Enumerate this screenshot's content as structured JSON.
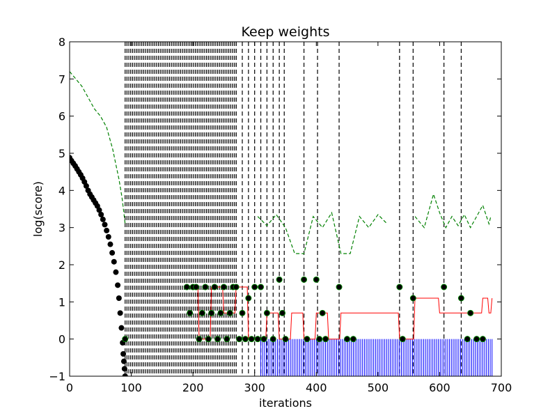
{
  "chart_data": {
    "type": "line",
    "title": "Keep weights",
    "xlabel": "iterations",
    "ylabel": "log(score)",
    "xlim": [
      0,
      700
    ],
    "ylim": [
      -1,
      8
    ],
    "xticks": [
      0,
      100,
      200,
      300,
      400,
      500,
      600,
      700
    ],
    "yticks": [
      -1,
      0,
      1,
      2,
      3,
      4,
      5,
      6,
      7,
      8
    ],
    "xtick_labels": [
      "0",
      "100",
      "200",
      "300",
      "400",
      "500",
      "600",
      "700"
    ],
    "ytick_labels": [
      "−1",
      "0",
      "1",
      "2",
      "3",
      "4",
      "5",
      "6",
      "7",
      "8"
    ],
    "grid": false,
    "legend": "none",
    "colors": {
      "decay_dots": "#000000",
      "green_dashed": "#008000",
      "red_line": "#ff0000",
      "blue_line": "#0000ff",
      "vlines": "#000000"
    },
    "series": [
      {
        "style": "black-dots",
        "x": [
          0,
          3,
          6,
          9,
          12,
          15,
          18,
          21,
          24,
          27,
          30,
          33,
          36,
          39,
          42,
          45,
          48,
          51,
          54,
          57,
          60,
          63,
          66,
          69,
          72,
          75,
          78,
          80,
          82,
          84,
          86,
          87,
          88,
          89,
          90
        ],
        "y": [
          4.88,
          4.8,
          4.73,
          4.66,
          4.58,
          4.5,
          4.42,
          4.33,
          4.23,
          4.12,
          4.0,
          3.9,
          3.82,
          3.74,
          3.66,
          3.58,
          3.47,
          3.35,
          3.22,
          3.08,
          2.92,
          2.75,
          2.55,
          2.32,
          2.08,
          1.8,
          1.45,
          1.1,
          0.7,
          0.3,
          -0.1,
          -0.4,
          -0.6,
          -0.8,
          -1.0
        ]
      },
      {
        "style": "green-dashed",
        "x": [
          0,
          10,
          20,
          30,
          40,
          50,
          60,
          70,
          75,
          80,
          85,
          88,
          90
        ],
        "y": [
          7.2,
          7.0,
          6.8,
          6.5,
          6.2,
          6.0,
          5.7,
          5.1,
          4.7,
          4.3,
          3.8,
          3.4,
          3.1
        ]
      },
      {
        "style": "green-dashed",
        "x": [
          305,
          320,
          335,
          350,
          365,
          380,
          395,
          410,
          425,
          440,
          455,
          470,
          485,
          500,
          515
        ],
        "y": [
          3.3,
          3.05,
          3.35,
          3.0,
          2.3,
          2.3,
          3.3,
          3.0,
          3.4,
          2.3,
          2.3,
          3.3,
          3.0,
          3.35,
          3.1
        ]
      },
      {
        "style": "green-dashed",
        "x": [
          560,
          575,
          590,
          600,
          610,
          620,
          630,
          640,
          650,
          660,
          670,
          680,
          683
        ],
        "y": [
          3.3,
          3.0,
          3.9,
          3.4,
          3.0,
          3.3,
          3.05,
          3.35,
          3.0,
          3.3,
          3.6,
          3.1,
          3.3
        ]
      },
      {
        "style": "red-line",
        "x": [
          190,
          210,
          230,
          250,
          270,
          290,
          300,
          320,
          340,
          360,
          380,
          400,
          420,
          440,
          460,
          480,
          500,
          520,
          535,
          545,
          555,
          560,
          580,
          600,
          620,
          640,
          660,
          670,
          680,
          685
        ],
        "y": [
          1.4,
          0.0,
          1.4,
          0.7,
          1.4,
          0.0,
          0.0,
          0.7,
          0.0,
          0.7,
          0.0,
          0.7,
          0.0,
          0.7,
          0.7,
          0.7,
          0.7,
          0.7,
          0.0,
          0.0,
          0.0,
          1.1,
          1.1,
          0.7,
          0.7,
          0.7,
          0.7,
          1.1,
          0.7,
          1.1
        ]
      },
      {
        "style": "blue-impulses",
        "x_range": [
          310,
          685
        ]
      },
      {
        "style": "black-vlines-dense",
        "x_range": [
          90,
          270
        ]
      },
      {
        "style": "black-vlines-dashed",
        "x": [
          270,
          280,
          290,
          300,
          310,
          320,
          330,
          340,
          348,
          380,
          402,
          437,
          535,
          557,
          607,
          635
        ]
      }
    ],
    "markers_green_dots": {
      "x": [
        90,
        190,
        195,
        200,
        205,
        210,
        215,
        220,
        225,
        230,
        235,
        240,
        245,
        250,
        255,
        260,
        265,
        270,
        275,
        280,
        285,
        290,
        295,
        300,
        305,
        310,
        315,
        320,
        330,
        340,
        345,
        350,
        380,
        385,
        400,
        405,
        410,
        415,
        437,
        450,
        460,
        535,
        540,
        557,
        607,
        635,
        645,
        650,
        660,
        670
      ],
      "y": [
        0.0,
        1.4,
        0.7,
        1.4,
        1.4,
        0.0,
        0.7,
        1.4,
        0.0,
        0.7,
        1.4,
        0.0,
        0.7,
        1.4,
        0.0,
        0.7,
        1.4,
        1.4,
        0.0,
        0.7,
        0.0,
        1.1,
        0.0,
        1.4,
        0.0,
        1.4,
        0.0,
        0.7,
        0.0,
        1.6,
        0.7,
        0.0,
        1.6,
        0.0,
        1.6,
        0.0,
        0.7,
        0.0,
        1.4,
        0.0,
        0.0,
        1.4,
        0.0,
        1.1,
        1.4,
        1.1,
        0.0,
        0.7,
        0.0,
        0.0
      ]
    }
  }
}
